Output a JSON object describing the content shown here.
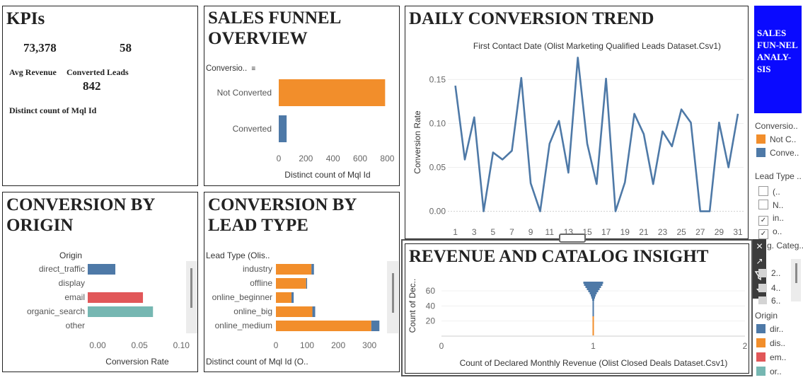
{
  "kpis": {
    "title": "KPIs",
    "avg_revenue_value": "73,378",
    "avg_revenue_label": "Avg Revenue",
    "converted_leads_value": "58",
    "converted_leads_label": "Converted Leads",
    "distinct_value": "842",
    "distinct_label": "Distinct count of Mql Id"
  },
  "funnel": {
    "title_line1": "SALES FUNNEL",
    "title_line2": "OVERVIEW",
    "field_label": "Conversio.."
  },
  "trend": {
    "title": "DAILY CONVERSION TREND"
  },
  "origin": {
    "title_line1": "CONVERSION BY",
    "title_line2": "ORIGIN",
    "header": "Origin"
  },
  "leadtype": {
    "title_line1": "CONVERSION BY",
    "title_line2": "LEAD TYPE",
    "header": "Lead Type (Olis.."
  },
  "revenue": {
    "title": "REVENUE AND CATALOG INSIGHT"
  },
  "sidebar": {
    "badge_text": "SALES FUN-NEL ANALY-SIS",
    "badge_color": "#0a0aff",
    "conversion_legend_title": "Conversio..",
    "conversion_items": [
      "Not C..",
      "Conve.."
    ],
    "lead_type_title": "Lead Type ..",
    "lead_type_items": [
      "(..",
      "N..",
      "in..",
      "o.."
    ],
    "lead_type_checked": [
      false,
      false,
      true,
      true
    ],
    "categ_title": "g. Categ..",
    "categ_items": [
      "2..",
      "4..",
      "6.."
    ],
    "origin_title": "Origin",
    "origin_items": [
      "dir..",
      "dis..",
      "em..",
      "or.."
    ]
  },
  "colors": {
    "orange": "#f28e2b",
    "blue": "#4e79a7",
    "red": "#e15759",
    "teal": "#76b7b2"
  },
  "chart_data": [
    {
      "type": "bar",
      "orientation": "horizontal",
      "categories": [
        "Not Converted",
        "Converted"
      ],
      "values": [
        784,
        58
      ],
      "colors": [
        "#f28e2b",
        "#4e79a7"
      ],
      "xlabel": "Distinct count of Mql Id",
      "xlim": [
        0,
        850
      ],
      "xticks": [
        0,
        200,
        400,
        600,
        800
      ]
    },
    {
      "type": "line",
      "title": "First Contact Date (Olist Marketing Qualified Leads Dataset.Csv1)",
      "ylabel": "Conversion Rate",
      "x": [
        1,
        2,
        3,
        4,
        5,
        6,
        7,
        8,
        9,
        10,
        11,
        12,
        13,
        14,
        15,
        16,
        17,
        18,
        19,
        20,
        21,
        22,
        23,
        24,
        25,
        26,
        27,
        28,
        29,
        30,
        31
      ],
      "values": [
        0.143,
        0.059,
        0.107,
        0.0,
        0.067,
        0.059,
        0.069,
        0.152,
        0.032,
        0.0,
        0.077,
        0.103,
        0.044,
        0.175,
        0.077,
        0.031,
        0.151,
        0.0,
        0.033,
        0.111,
        0.088,
        0.031,
        0.091,
        0.074,
        0.116,
        0.101,
        0.0,
        0.0,
        0.101,
        0.05,
        0.111
      ],
      "xticks": [
        1,
        3,
        5,
        7,
        9,
        11,
        13,
        15,
        17,
        19,
        21,
        23,
        25,
        27,
        29,
        31
      ],
      "yticks": [
        0.0,
        0.05,
        0.1,
        0.15
      ],
      "ylim": [
        -0.01,
        0.185
      ],
      "color": "#4e79a7"
    },
    {
      "type": "bar",
      "orientation": "horizontal",
      "categories": [
        "direct_traffic",
        "display",
        "email",
        "organic_search",
        "other"
      ],
      "values": [
        0.033,
        0.0,
        0.066,
        0.078,
        0.0
      ],
      "colors": [
        "#4e79a7",
        "#4e79a7",
        "#e15759",
        "#76b7b2",
        "#4e79a7"
      ],
      "xlabel": "Conversion Rate",
      "xlim": [
        0,
        0.115
      ],
      "xticks": [
        "0.00",
        "0.05",
        "0.10"
      ]
    },
    {
      "type": "bar",
      "orientation": "horizontal",
      "stacked": true,
      "categories": [
        "industry",
        "offline",
        "online_beginner",
        "online_big",
        "online_medium"
      ],
      "series": [
        {
          "name": "Not Converted",
          "values": [
            114,
            97,
            50,
            117,
            306
          ]
        },
        {
          "name": "Converted",
          "values": [
            8,
            3,
            7,
            9,
            26
          ]
        }
      ],
      "xlabel": "Distinct count of Mql Id (O..",
      "xlim": [
        0,
        345
      ],
      "xticks": [
        0,
        100,
        200,
        300
      ]
    },
    {
      "type": "area",
      "xlabel": "Count of Declared Monthly Revenue (Olist Closed Deals Dataset.Csv1)",
      "ylabel": "Count of Dec..",
      "xticks": [
        "0",
        "1",
        "2"
      ],
      "yticks": [
        "20",
        "40",
        "60"
      ],
      "ylim": [
        0,
        75
      ]
    }
  ]
}
